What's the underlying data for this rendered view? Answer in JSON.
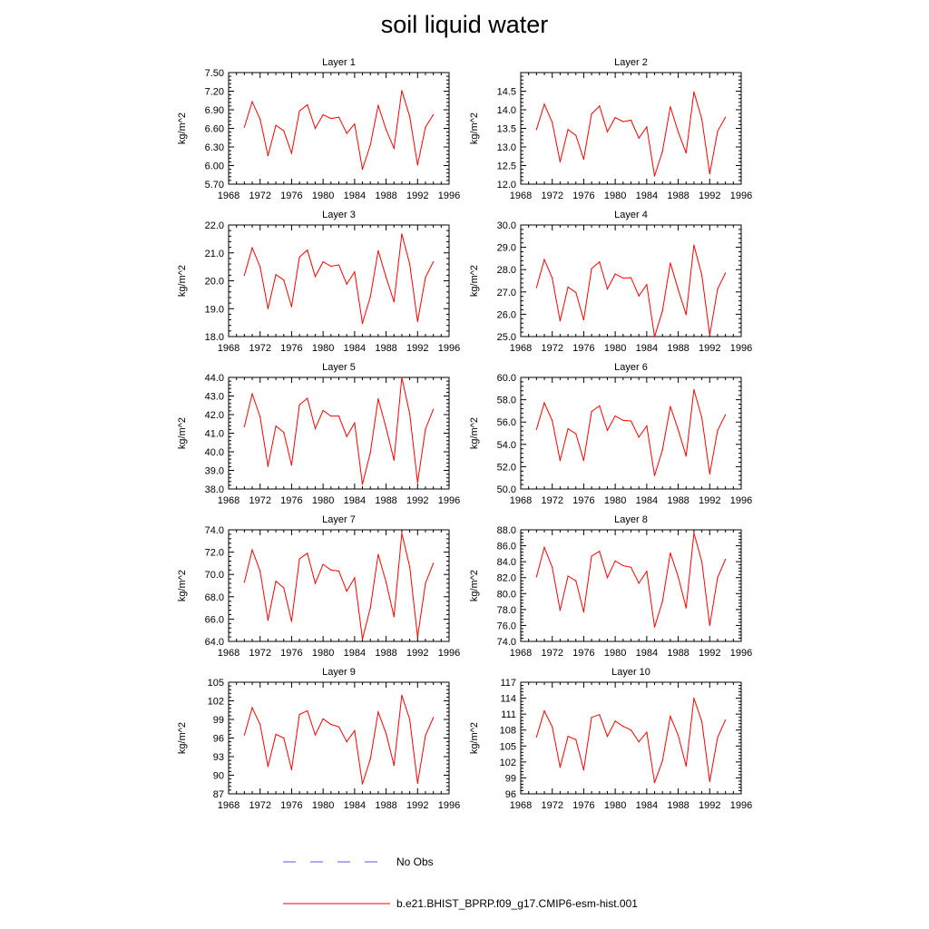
{
  "title": "soil liquid water",
  "legend": {
    "items": [
      {
        "label": "No Obs",
        "color": "#5a5ad8",
        "dash": true
      },
      {
        "label": "b.e21.BHIST_BPRP.f09_g17.CMIP6-esm-hist.001",
        "color": "#ff0000",
        "dash": false
      }
    ]
  },
  "colors": {
    "series": "#ff0000",
    "no_obs": "#5a5ad8"
  },
  "chart_data": [
    {
      "type": "line",
      "title": "Layer 1",
      "ylabel": "kg/m^2",
      "xlim": [
        1968,
        1996
      ],
      "xticks": [
        "1968",
        "1972",
        "1976",
        "1980",
        "1984",
        "1988",
        "1992",
        "1996"
      ],
      "ylim": [
        5.7,
        7.5
      ],
      "yticks": [
        "5.70",
        "6.00",
        "6.30",
        "6.60",
        "6.90",
        "7.20",
        "7.50"
      ],
      "series": [
        {
          "name": "b.e21.BHIST_BPRP.f09_g17.CMIP6-esm-hist.001",
          "x": [
            1970,
            1971,
            1972,
            1973,
            1974,
            1975,
            1976,
            1977,
            1978,
            1979,
            1980,
            1981,
            1982,
            1983,
            1984,
            1985,
            1986,
            1987,
            1988,
            1989,
            1990,
            1991,
            1992,
            1993,
            1994
          ],
          "y": [
            6.62,
            7.03,
            6.75,
            6.16,
            6.65,
            6.56,
            6.2,
            6.88,
            6.98,
            6.6,
            6.82,
            6.76,
            6.78,
            6.52,
            6.67,
            5.94,
            6.33,
            6.97,
            6.58,
            6.28,
            7.21,
            6.79,
            6.01,
            6.62,
            6.82
          ]
        }
      ]
    },
    {
      "type": "line",
      "title": "Layer 2",
      "ylabel": "kg/m^2",
      "xlim": [
        1968,
        1996
      ],
      "xticks": [
        "1968",
        "1972",
        "1976",
        "1980",
        "1984",
        "1988",
        "1992",
        "1996"
      ],
      "ylim": [
        12.0,
        15.0
      ],
      "yticks": [
        "12.0",
        "12.5",
        "13.0",
        "13.5",
        "14.0",
        "14.5"
      ],
      "series": [
        {
          "name": "b.e21.BHIST_BPRP.f09_g17.CMIP6-esm-hist.001",
          "x": [
            1970,
            1971,
            1972,
            1973,
            1974,
            1975,
            1976,
            1977,
            1978,
            1979,
            1980,
            1981,
            1982,
            1983,
            1984,
            1985,
            1986,
            1987,
            1988,
            1989,
            1990,
            1991,
            1992,
            1993,
            1994
          ],
          "y": [
            13.47,
            14.15,
            13.66,
            12.6,
            13.47,
            13.31,
            12.67,
            13.89,
            14.1,
            13.41,
            13.79,
            13.68,
            13.72,
            13.24,
            13.54,
            12.22,
            12.88,
            14.08,
            13.4,
            12.84,
            14.48,
            13.75,
            12.28,
            13.42,
            13.8
          ]
        }
      ]
    },
    {
      "type": "line",
      "title": "Layer 3",
      "ylabel": "kg/m^2",
      "xlim": [
        1968,
        1996
      ],
      "xticks": [
        "1968",
        "1972",
        "1976",
        "1980",
        "1984",
        "1988",
        "1992",
        "1996"
      ],
      "ylim": [
        18.0,
        22.0
      ],
      "yticks": [
        "18.0",
        "19.0",
        "20.0",
        "21.0",
        "22.0"
      ],
      "series": [
        {
          "name": "b.e21.BHIST_BPRP.f09_g17.CMIP6-esm-hist.001",
          "x": [
            1970,
            1971,
            1972,
            1973,
            1974,
            1975,
            1976,
            1977,
            1978,
            1979,
            1980,
            1981,
            1982,
            1983,
            1984,
            1985,
            1986,
            1987,
            1988,
            1989,
            1990,
            1991,
            1992,
            1993,
            1994
          ],
          "y": [
            20.2,
            21.18,
            20.5,
            19.0,
            20.22,
            20.03,
            19.07,
            20.85,
            21.1,
            20.15,
            20.68,
            20.52,
            20.57,
            19.88,
            20.32,
            18.47,
            19.42,
            21.08,
            20.12,
            19.25,
            21.68,
            20.6,
            18.54,
            20.12,
            20.68
          ]
        }
      ]
    },
    {
      "type": "line",
      "title": "Layer 4",
      "ylabel": "kg/m^2",
      "xlim": [
        1968,
        1996
      ],
      "xticks": [
        "1968",
        "1972",
        "1976",
        "1980",
        "1984",
        "1988",
        "1992",
        "1996"
      ],
      "ylim": [
        25.0,
        30.0
      ],
      "yticks": [
        "25.0",
        "26.0",
        "27.0",
        "28.0",
        "29.0",
        "30.0"
      ],
      "series": [
        {
          "name": "b.e21.BHIST_BPRP.f09_g17.CMIP6-esm-hist.001",
          "x": [
            1970,
            1971,
            1972,
            1973,
            1974,
            1975,
            1976,
            1977,
            1978,
            1979,
            1980,
            1981,
            1982,
            1983,
            1984,
            1985,
            1986,
            1987,
            1988,
            1989,
            1990,
            1991,
            1992,
            1993,
            1994
          ],
          "y": [
            27.2,
            28.45,
            27.62,
            25.7,
            27.22,
            26.98,
            25.75,
            28.05,
            28.35,
            27.13,
            27.8,
            27.62,
            27.64,
            26.82,
            27.33,
            24.99,
            26.15,
            28.3,
            27.1,
            25.98,
            29.1,
            27.75,
            25.07,
            27.13,
            27.85
          ]
        }
      ]
    },
    {
      "type": "line",
      "title": "Layer 5",
      "ylabel": "kg/m^2",
      "xlim": [
        1968,
        1996
      ],
      "xticks": [
        "1968",
        "1972",
        "1976",
        "1980",
        "1984",
        "1988",
        "1992",
        "1996"
      ],
      "ylim": [
        38.0,
        44.0
      ],
      "yticks": [
        "38.0",
        "39.0",
        "40.0",
        "41.0",
        "42.0",
        "43.0",
        "44.0"
      ],
      "series": [
        {
          "name": "b.e21.BHIST_BPRP.f09_g17.CMIP6-esm-hist.001",
          "x": [
            1970,
            1971,
            1972,
            1973,
            1974,
            1975,
            1976,
            1977,
            1978,
            1979,
            1980,
            1981,
            1982,
            1983,
            1984,
            1985,
            1986,
            1987,
            1988,
            1989,
            1990,
            1991,
            1992,
            1993,
            1994
          ],
          "y": [
            41.35,
            43.12,
            41.88,
            39.22,
            41.38,
            41.05,
            39.28,
            42.52,
            42.88,
            41.25,
            42.22,
            41.92,
            41.92,
            40.82,
            41.55,
            38.25,
            39.95,
            42.85,
            41.28,
            39.55,
            44.0,
            42.05,
            38.35,
            41.22,
            42.28
          ]
        }
      ]
    },
    {
      "type": "line",
      "title": "Layer 6",
      "ylabel": "kg/m^2",
      "xlim": [
        1968,
        1996
      ],
      "xticks": [
        "1968",
        "1972",
        "1976",
        "1980",
        "1984",
        "1988",
        "1992",
        "1996"
      ],
      "ylim": [
        50.0,
        60.0
      ],
      "yticks": [
        "50.0",
        "52.0",
        "54.0",
        "56.0",
        "58.0",
        "60.0"
      ],
      "series": [
        {
          "name": "b.e21.BHIST_BPRP.f09_g17.CMIP6-esm-hist.001",
          "x": [
            1970,
            1971,
            1972,
            1973,
            1974,
            1975,
            1976,
            1977,
            1978,
            1979,
            1980,
            1981,
            1982,
            1983,
            1984,
            1985,
            1986,
            1987,
            1988,
            1989,
            1990,
            1991,
            1992,
            1993,
            1994
          ],
          "y": [
            55.35,
            57.72,
            56.12,
            52.55,
            55.4,
            54.95,
            52.55,
            56.95,
            57.45,
            55.25,
            56.55,
            56.15,
            56.1,
            54.65,
            55.65,
            51.2,
            53.5,
            57.4,
            55.3,
            52.95,
            58.9,
            56.4,
            51.35,
            55.25,
            56.65
          ]
        }
      ]
    },
    {
      "type": "line",
      "title": "Layer 7",
      "ylabel": "kg/m^2",
      "xlim": [
        1968,
        1996
      ],
      "xticks": [
        "1968",
        "1972",
        "1976",
        "1980",
        "1984",
        "1988",
        "1992",
        "1996"
      ],
      "ylim": [
        64.0,
        74.0
      ],
      "yticks": [
        "64.0",
        "66.0",
        "68.0",
        "70.0",
        "72.0",
        "74.0"
      ],
      "series": [
        {
          "name": "b.e21.BHIST_BPRP.f09_g17.CMIP6-esm-hist.001",
          "x": [
            1970,
            1971,
            1972,
            1973,
            1974,
            1975,
            1976,
            1977,
            1978,
            1979,
            1980,
            1981,
            1982,
            1983,
            1984,
            1985,
            1986,
            1987,
            1988,
            1989,
            1990,
            1991,
            1992,
            1993,
            1994
          ],
          "y": [
            69.3,
            72.2,
            70.3,
            65.9,
            69.4,
            68.8,
            65.8,
            71.4,
            71.9,
            69.2,
            70.9,
            70.4,
            70.3,
            68.5,
            69.7,
            64.2,
            67.0,
            71.8,
            69.3,
            66.2,
            73.7,
            70.7,
            64.4,
            69.2,
            71.0
          ]
        }
      ]
    },
    {
      "type": "line",
      "title": "Layer 8",
      "ylabel": "kg/m^2",
      "xlim": [
        1968,
        1996
      ],
      "xticks": [
        "1968",
        "1972",
        "1976",
        "1980",
        "1984",
        "1988",
        "1992",
        "1996"
      ],
      "ylim": [
        74.0,
        88.0
      ],
      "yticks": [
        "74.0",
        "76.0",
        "78.0",
        "80.0",
        "82.0",
        "84.0",
        "86.0",
        "88.0"
      ],
      "series": [
        {
          "name": "b.e21.BHIST_BPRP.f09_g17.CMIP6-esm-hist.001",
          "x": [
            1970,
            1971,
            1972,
            1973,
            1974,
            1975,
            1976,
            1977,
            1978,
            1979,
            1980,
            1981,
            1982,
            1983,
            1984,
            1985,
            1986,
            1987,
            1988,
            1989,
            1990,
            1991,
            1992,
            1993,
            1994
          ],
          "y": [
            82.1,
            85.8,
            83.3,
            77.9,
            82.2,
            81.6,
            77.7,
            84.7,
            85.3,
            82.0,
            84.1,
            83.5,
            83.3,
            81.3,
            82.8,
            75.8,
            79.0,
            85.1,
            82.1,
            78.2,
            87.6,
            84.0,
            76.0,
            82.0,
            84.3
          ]
        }
      ]
    },
    {
      "type": "line",
      "title": "Layer 9",
      "ylabel": "kg/m^2",
      "xlim": [
        1968,
        1996
      ],
      "xticks": [
        "1968",
        "1972",
        "1976",
        "1980",
        "1984",
        "1988",
        "1992",
        "1996"
      ],
      "ylim": [
        87,
        105
      ],
      "yticks": [
        "87",
        "90",
        "93",
        "96",
        "99",
        "102",
        "105"
      ],
      "series": [
        {
          "name": "b.e21.BHIST_BPRP.f09_g17.CMIP6-esm-hist.001",
          "x": [
            1970,
            1971,
            1972,
            1973,
            1974,
            1975,
            1976,
            1977,
            1978,
            1979,
            1980,
            1981,
            1982,
            1983,
            1984,
            1985,
            1986,
            1987,
            1988,
            1989,
            1990,
            1991,
            1992,
            1993,
            1994
          ],
          "y": [
            96.5,
            100.9,
            98.2,
            91.4,
            96.6,
            96.0,
            90.9,
            99.8,
            100.4,
            96.5,
            99.1,
            98.2,
            97.8,
            95.4,
            97.2,
            88.6,
            92.6,
            100.2,
            96.7,
            91.6,
            102.9,
            99.0,
            88.7,
            96.4,
            99.3
          ]
        }
      ]
    },
    {
      "type": "line",
      "title": "Layer 10",
      "ylabel": "kg/m^2",
      "xlim": [
        1968,
        1996
      ],
      "xticks": [
        "1968",
        "1972",
        "1976",
        "1980",
        "1984",
        "1988",
        "1992",
        "1996"
      ],
      "ylim": [
        96,
        117
      ],
      "yticks": [
        "96",
        "99",
        "102",
        "105",
        "108",
        "111",
        "114",
        "117"
      ],
      "series": [
        {
          "name": "b.e21.BHIST_BPRP.f09_g17.CMIP6-esm-hist.001",
          "x": [
            1970,
            1971,
            1972,
            1973,
            1974,
            1975,
            1976,
            1977,
            1978,
            1979,
            1980,
            1981,
            1982,
            1983,
            1984,
            1985,
            1986,
            1987,
            1988,
            1989,
            1990,
            1991,
            1992,
            1993,
            1994
          ],
          "y": [
            106.7,
            111.6,
            108.6,
            101.0,
            106.8,
            106.2,
            100.5,
            110.4,
            110.9,
            106.8,
            109.7,
            108.7,
            108.0,
            105.8,
            107.6,
            98.1,
            102.2,
            110.6,
            107.0,
            101.2,
            114.0,
            109.6,
            98.3,
            106.6,
            109.9
          ]
        }
      ]
    }
  ]
}
